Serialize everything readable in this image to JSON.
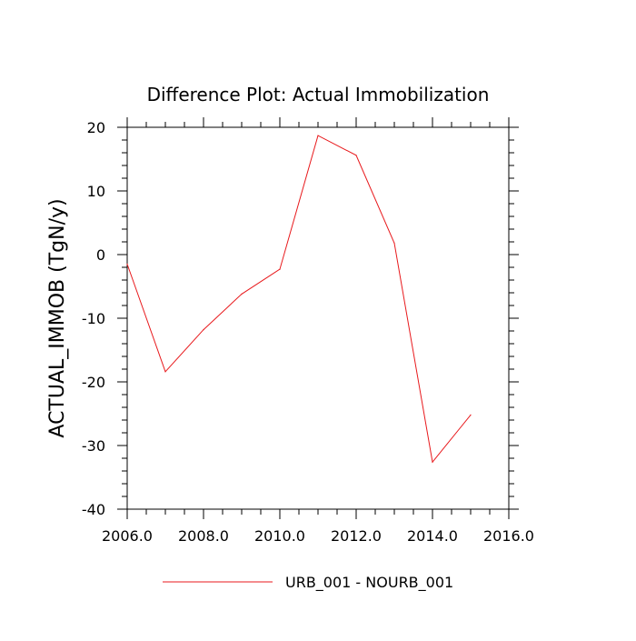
{
  "chart_data": {
    "type": "line",
    "title": "Difference Plot: Actual Immobilization",
    "xlabel": "",
    "ylabel": "ACTUAL_IMMOB  (TgN/y)",
    "xlim": [
      2006,
      2016
    ],
    "ylim": [
      -40,
      20
    ],
    "xticks": [
      2006,
      2008,
      2010,
      2012,
      2014,
      2016
    ],
    "xtick_labels": [
      "2006.0",
      "2008.0",
      "2010.0",
      "2012.0",
      "2014.0",
      "2016.0"
    ],
    "yticks": [
      -40,
      -30,
      -20,
      -10,
      0,
      10,
      20
    ],
    "ytick_labels": [
      "-40",
      "-30",
      "-20",
      "-10",
      "0",
      "10",
      "20"
    ],
    "grid": false,
    "legend_position": "bottom-center",
    "series": [
      {
        "name": "URB_001 - NOURB_001",
        "color": "#e8191c",
        "x": [
          2006,
          2007,
          2008,
          2009,
          2010,
          2011,
          2012,
          2013,
          2014,
          2015
        ],
        "y": [
          -1.5,
          -18.4,
          -11.8,
          -6.2,
          -2.3,
          18.7,
          15.6,
          1.8,
          -32.6,
          -25.2
        ]
      }
    ]
  }
}
